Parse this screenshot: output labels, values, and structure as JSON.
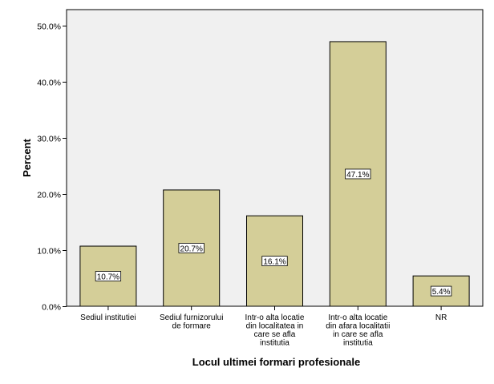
{
  "chart_data": {
    "type": "bar",
    "categories": [
      "Sediul institutiei",
      "Sediul furnizorului de formare",
      "Intr-o alta locatie din localitatea in care se afla institutia",
      "Intr-o alta locatie din afara localitatii in care se afla institutia",
      "NR"
    ],
    "category_lines": [
      [
        "Sediul institutiei"
      ],
      [
        "Sediul furnizorului",
        "de formare"
      ],
      [
        "Intr-o alta locatie",
        "din localitatea in",
        "care se afla",
        "institutia"
      ],
      [
        "Intr-o alta locatie",
        "din afara localitatii",
        "in care se afla",
        "institutia"
      ],
      [
        "NR"
      ]
    ],
    "values": [
      10.7,
      20.7,
      16.1,
      47.1,
      5.4
    ],
    "data_labels": [
      "10.7%",
      "20.7%",
      "16.1%",
      "47.1%",
      "5.4%"
    ],
    "xlabel": "Locul ultimei formari profesionale",
    "ylabel": "Percent",
    "ylim": [
      0,
      52.8
    ],
    "yticks": [
      0,
      10,
      20,
      30,
      40,
      50
    ],
    "ytick_labels": [
      "0.0%",
      "10.0%",
      "20.0%",
      "30.0%",
      "40.0%",
      "50.0%"
    ],
    "grid": false,
    "legend": "none",
    "bar_color": "#d4ce98",
    "plot_background": "#f0f0f0"
  }
}
